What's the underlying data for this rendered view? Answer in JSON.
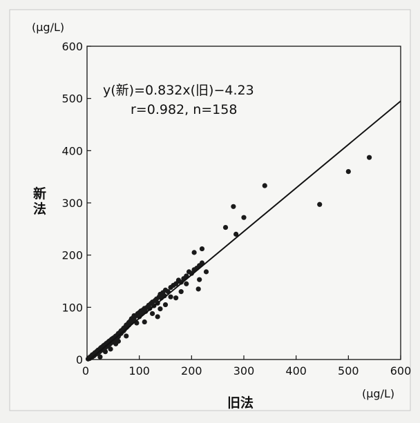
{
  "chart_data": {
    "type": "scatter",
    "title": "",
    "xlabel": "旧法",
    "ylabel": "新法",
    "x_unit": "(μg/L)",
    "y_unit": "(μg/L)",
    "xlim": [
      0,
      600
    ],
    "ylim": [
      0,
      600
    ],
    "xticks": [
      0,
      100,
      200,
      300,
      400,
      500,
      600
    ],
    "yticks": [
      0,
      100,
      200,
      300,
      400,
      500,
      600
    ],
    "grid": false,
    "annotation_line1": "y(新)=0.832x(旧)−4.23",
    "annotation_line2": "r=0.982, n=158",
    "regression": {
      "slope": 0.832,
      "intercept": -4.23
    },
    "series": [
      {
        "points": [
          [
            2,
            1
          ],
          [
            4,
            3
          ],
          [
            5,
            2
          ],
          [
            6,
            5
          ],
          [
            7,
            4
          ],
          [
            8,
            6
          ],
          [
            9,
            7
          ],
          [
            10,
            5
          ],
          [
            10,
            9
          ],
          [
            11,
            8
          ],
          [
            12,
            10
          ],
          [
            13,
            7
          ],
          [
            14,
            11
          ],
          [
            15,
            13
          ],
          [
            15,
            9
          ],
          [
            16,
            12
          ],
          [
            17,
            14
          ],
          [
            18,
            11
          ],
          [
            19,
            16
          ],
          [
            20,
            15
          ],
          [
            20,
            12
          ],
          [
            21,
            18
          ],
          [
            22,
            17
          ],
          [
            23,
            14
          ],
          [
            24,
            19
          ],
          [
            25,
            21
          ],
          [
            25,
            16
          ],
          [
            26,
            20
          ],
          [
            27,
            23
          ],
          [
            28,
            18
          ],
          [
            29,
            22
          ],
          [
            30,
            25
          ],
          [
            30,
            19
          ],
          [
            31,
            24
          ],
          [
            32,
            27
          ],
          [
            33,
            21
          ],
          [
            34,
            26
          ],
          [
            35,
            29
          ],
          [
            35,
            23
          ],
          [
            36,
            28
          ],
          [
            37,
            31
          ],
          [
            38,
            25
          ],
          [
            39,
            30
          ],
          [
            40,
            33
          ],
          [
            40,
            27
          ],
          [
            41,
            32
          ],
          [
            42,
            35
          ],
          [
            43,
            29
          ],
          [
            44,
            34
          ],
          [
            45,
            37
          ],
          [
            45,
            31
          ],
          [
            46,
            36
          ],
          [
            47,
            39
          ],
          [
            48,
            33
          ],
          [
            49,
            38
          ],
          [
            50,
            41
          ],
          [
            50,
            35
          ],
          [
            52,
            40
          ],
          [
            53,
            43
          ],
          [
            55,
            38
          ],
          [
            55,
            45
          ],
          [
            57,
            42
          ],
          [
            58,
            47
          ],
          [
            60,
            44
          ],
          [
            60,
            50
          ],
          [
            62,
            48
          ],
          [
            63,
            52
          ],
          [
            65,
            50
          ],
          [
            65,
            55
          ],
          [
            67,
            53
          ],
          [
            68,
            57
          ],
          [
            70,
            55
          ],
          [
            70,
            60
          ],
          [
            72,
            58
          ],
          [
            73,
            62
          ],
          [
            75,
            61
          ],
          [
            75,
            66
          ],
          [
            77,
            63
          ],
          [
            78,
            68
          ],
          [
            80,
            66
          ],
          [
            80,
            71
          ],
          [
            82,
            70
          ],
          [
            83,
            74
          ],
          [
            85,
            72
          ],
          [
            85,
            78
          ],
          [
            87,
            75
          ],
          [
            88,
            80
          ],
          [
            90,
            78
          ],
          [
            90,
            84
          ],
          [
            92,
            83
          ],
          [
            95,
            85
          ],
          [
            97,
            88
          ],
          [
            100,
            82
          ],
          [
            100,
            90
          ],
          [
            103,
            93
          ],
          [
            105,
            88
          ],
          [
            107,
            95
          ],
          [
            110,
            98
          ],
          [
            112,
            92
          ],
          [
            115,
            100
          ],
          [
            118,
            104
          ],
          [
            120,
            98
          ],
          [
            122,
            107
          ],
          [
            125,
            110
          ],
          [
            128,
            103
          ],
          [
            130,
            113
          ],
          [
            133,
            116
          ],
          [
            135,
            108
          ],
          [
            138,
            120
          ],
          [
            140,
            125
          ],
          [
            142,
            118
          ],
          [
            145,
            128
          ],
          [
            148,
            122
          ],
          [
            150,
            133
          ],
          [
            155,
            130
          ],
          [
            160,
            138
          ],
          [
            165,
            142
          ],
          [
            170,
            145
          ],
          [
            175,
            150
          ],
          [
            180,
            148
          ],
          [
            185,
            155
          ],
          [
            190,
            160
          ],
          [
            195,
            168
          ],
          [
            200,
            165
          ],
          [
            205,
            172
          ],
          [
            210,
            175
          ],
          [
            215,
            180
          ],
          [
            220,
            185
          ],
          [
            190,
            145
          ],
          [
            175,
            152
          ],
          [
            135,
            82
          ],
          [
            140,
            97
          ],
          [
            205,
            205
          ],
          [
            215,
            153
          ],
          [
            213,
            135
          ],
          [
            228,
            168
          ],
          [
            220,
            212
          ],
          [
            265,
            253
          ],
          [
            280,
            293
          ],
          [
            285,
            240
          ],
          [
            300,
            272
          ],
          [
            340,
            333
          ],
          [
            445,
            297
          ],
          [
            500,
            360
          ],
          [
            540,
            387
          ],
          [
            25,
            5
          ],
          [
            35,
            15
          ],
          [
            45,
            20
          ],
          [
            55,
            30
          ],
          [
            60,
            35
          ],
          [
            75,
            45
          ],
          [
            95,
            70
          ],
          [
            110,
            72
          ],
          [
            125,
            88
          ],
          [
            150,
            105
          ],
          [
            160,
            120
          ],
          [
            180,
            130
          ],
          [
            170,
            118
          ]
        ]
      }
    ]
  }
}
